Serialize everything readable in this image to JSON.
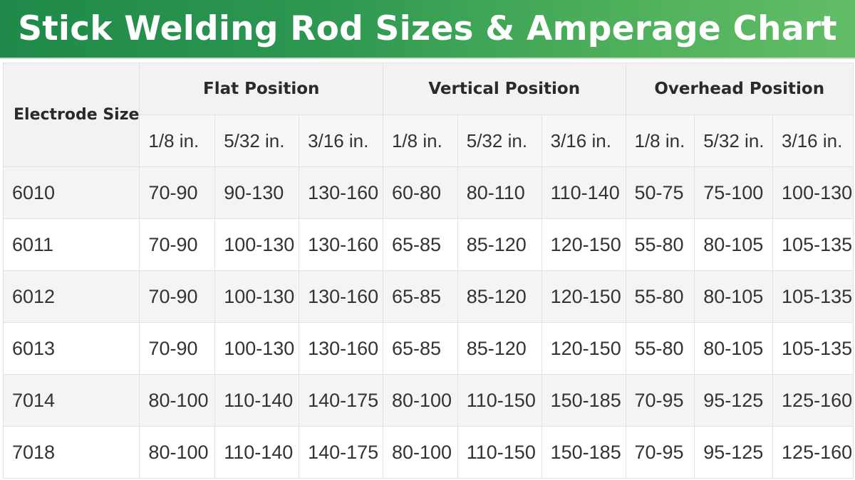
{
  "title": "Stick Welding Rod Sizes & Amperage Chart",
  "colors": {
    "banner_start": "#1f8a49",
    "banner_end": "#62bd67",
    "header_bg": "#f2f2f2",
    "row_shade": "#f4f4f4"
  },
  "table": {
    "corner_label": "Electrode Size",
    "groups": [
      "Flat Position",
      "Vertical Position",
      "Overhead Position"
    ],
    "subheaders": [
      "1/8 in.",
      "5/32 in.",
      "3/16 in.",
      "1/8 in.",
      "5/32 in.",
      "3/16 in.",
      "1/8 in.",
      "5/32 in.",
      "3/16 in."
    ],
    "rows": [
      {
        "size": "6010",
        "values": [
          "70-90",
          "90-130",
          "130-160",
          "60-80",
          "80-110",
          "110-140",
          "50-75",
          "75-100",
          "100-130"
        ]
      },
      {
        "size": "6011",
        "values": [
          "70-90",
          "100-130",
          "130-160",
          "65-85",
          "85-120",
          "120-150",
          "55-80",
          "80-105",
          "105-135"
        ]
      },
      {
        "size": "6012",
        "values": [
          "70-90",
          "100-130",
          "130-160",
          "65-85",
          "85-120",
          "120-150",
          "55-80",
          "80-105",
          "105-135"
        ]
      },
      {
        "size": "6013",
        "values": [
          "70-90",
          "100-130",
          "130-160",
          "65-85",
          "85-120",
          "120-150",
          "55-80",
          "80-105",
          "105-135"
        ]
      },
      {
        "size": "7014",
        "values": [
          "80-100",
          "110-140",
          "140-175",
          "80-100",
          "110-150",
          "150-185",
          "70-95",
          "95-125",
          "125-160"
        ]
      },
      {
        "size": "7018",
        "values": [
          "80-100",
          "110-140",
          "140-175",
          "80-100",
          "110-150",
          "150-185",
          "70-95",
          "95-125",
          "125-160"
        ]
      }
    ]
  }
}
